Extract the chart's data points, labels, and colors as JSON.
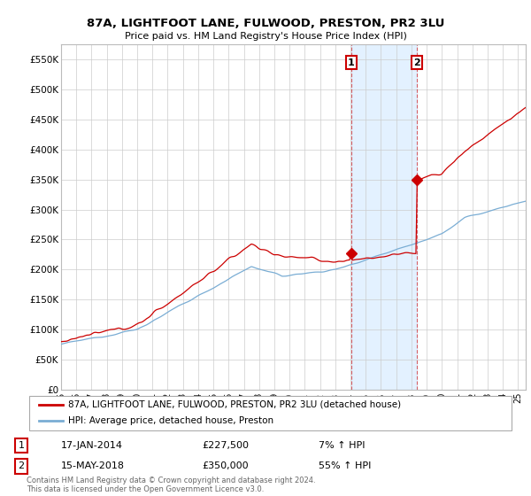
{
  "title": "87A, LIGHTFOOT LANE, FULWOOD, PRESTON, PR2 3LU",
  "subtitle": "Price paid vs. HM Land Registry's House Price Index (HPI)",
  "background_color": "#ffffff",
  "plot_bg_color": "#ffffff",
  "grid_color": "#cccccc",
  "red_line_color": "#cc0000",
  "blue_line_color": "#7aadd4",
  "shade_color": "#ddeeff",
  "ytick_labels": [
    "£0",
    "£50K",
    "£100K",
    "£150K",
    "£200K",
    "£250K",
    "£300K",
    "£350K",
    "£400K",
    "£450K",
    "£500K",
    "£550K"
  ],
  "ytick_values": [
    0,
    50000,
    100000,
    150000,
    200000,
    250000,
    300000,
    350000,
    400000,
    450000,
    500000,
    550000
  ],
  "xtick_years": [
    1995,
    1996,
    1997,
    1998,
    1999,
    2000,
    2001,
    2002,
    2003,
    2004,
    2005,
    2006,
    2007,
    2008,
    2009,
    2010,
    2011,
    2012,
    2013,
    2014,
    2015,
    2016,
    2017,
    2018,
    2019,
    2020,
    2021,
    2022,
    2023,
    2024,
    2025
  ],
  "xtick_labels": [
    "95",
    "96",
    "97",
    "98",
    "99",
    "00",
    "01",
    "02",
    "03",
    "04",
    "05",
    "06",
    "07",
    "08",
    "09",
    "10",
    "11",
    "12",
    "13",
    "14",
    "15",
    "16",
    "17",
    "18",
    "19",
    "20",
    "21",
    "22",
    "23",
    "24",
    "25"
  ],
  "sale1_date": 2014.04,
  "sale1_price": 227500,
  "sale1_label": "1",
  "sale2_date": 2018.37,
  "sale2_price": 350000,
  "sale2_label": "2",
  "shade_x1": 2014.04,
  "shade_x2": 2018.37,
  "legend_red": "87A, LIGHTFOOT LANE, FULWOOD, PRESTON, PR2 3LU (detached house)",
  "legend_blue": "HPI: Average price, detached house, Preston",
  "annot1_date": "17-JAN-2014",
  "annot1_price": "£227,500",
  "annot1_hpi": "7% ↑ HPI",
  "annot2_date": "15-MAY-2018",
  "annot2_price": "£350,000",
  "annot2_hpi": "55% ↑ HPI",
  "footer": "Contains HM Land Registry data © Crown copyright and database right 2024.\nThis data is licensed under the Open Government Licence v3.0.",
  "xlim": [
    1995,
    2025.5
  ],
  "ylim": [
    0,
    575000
  ]
}
